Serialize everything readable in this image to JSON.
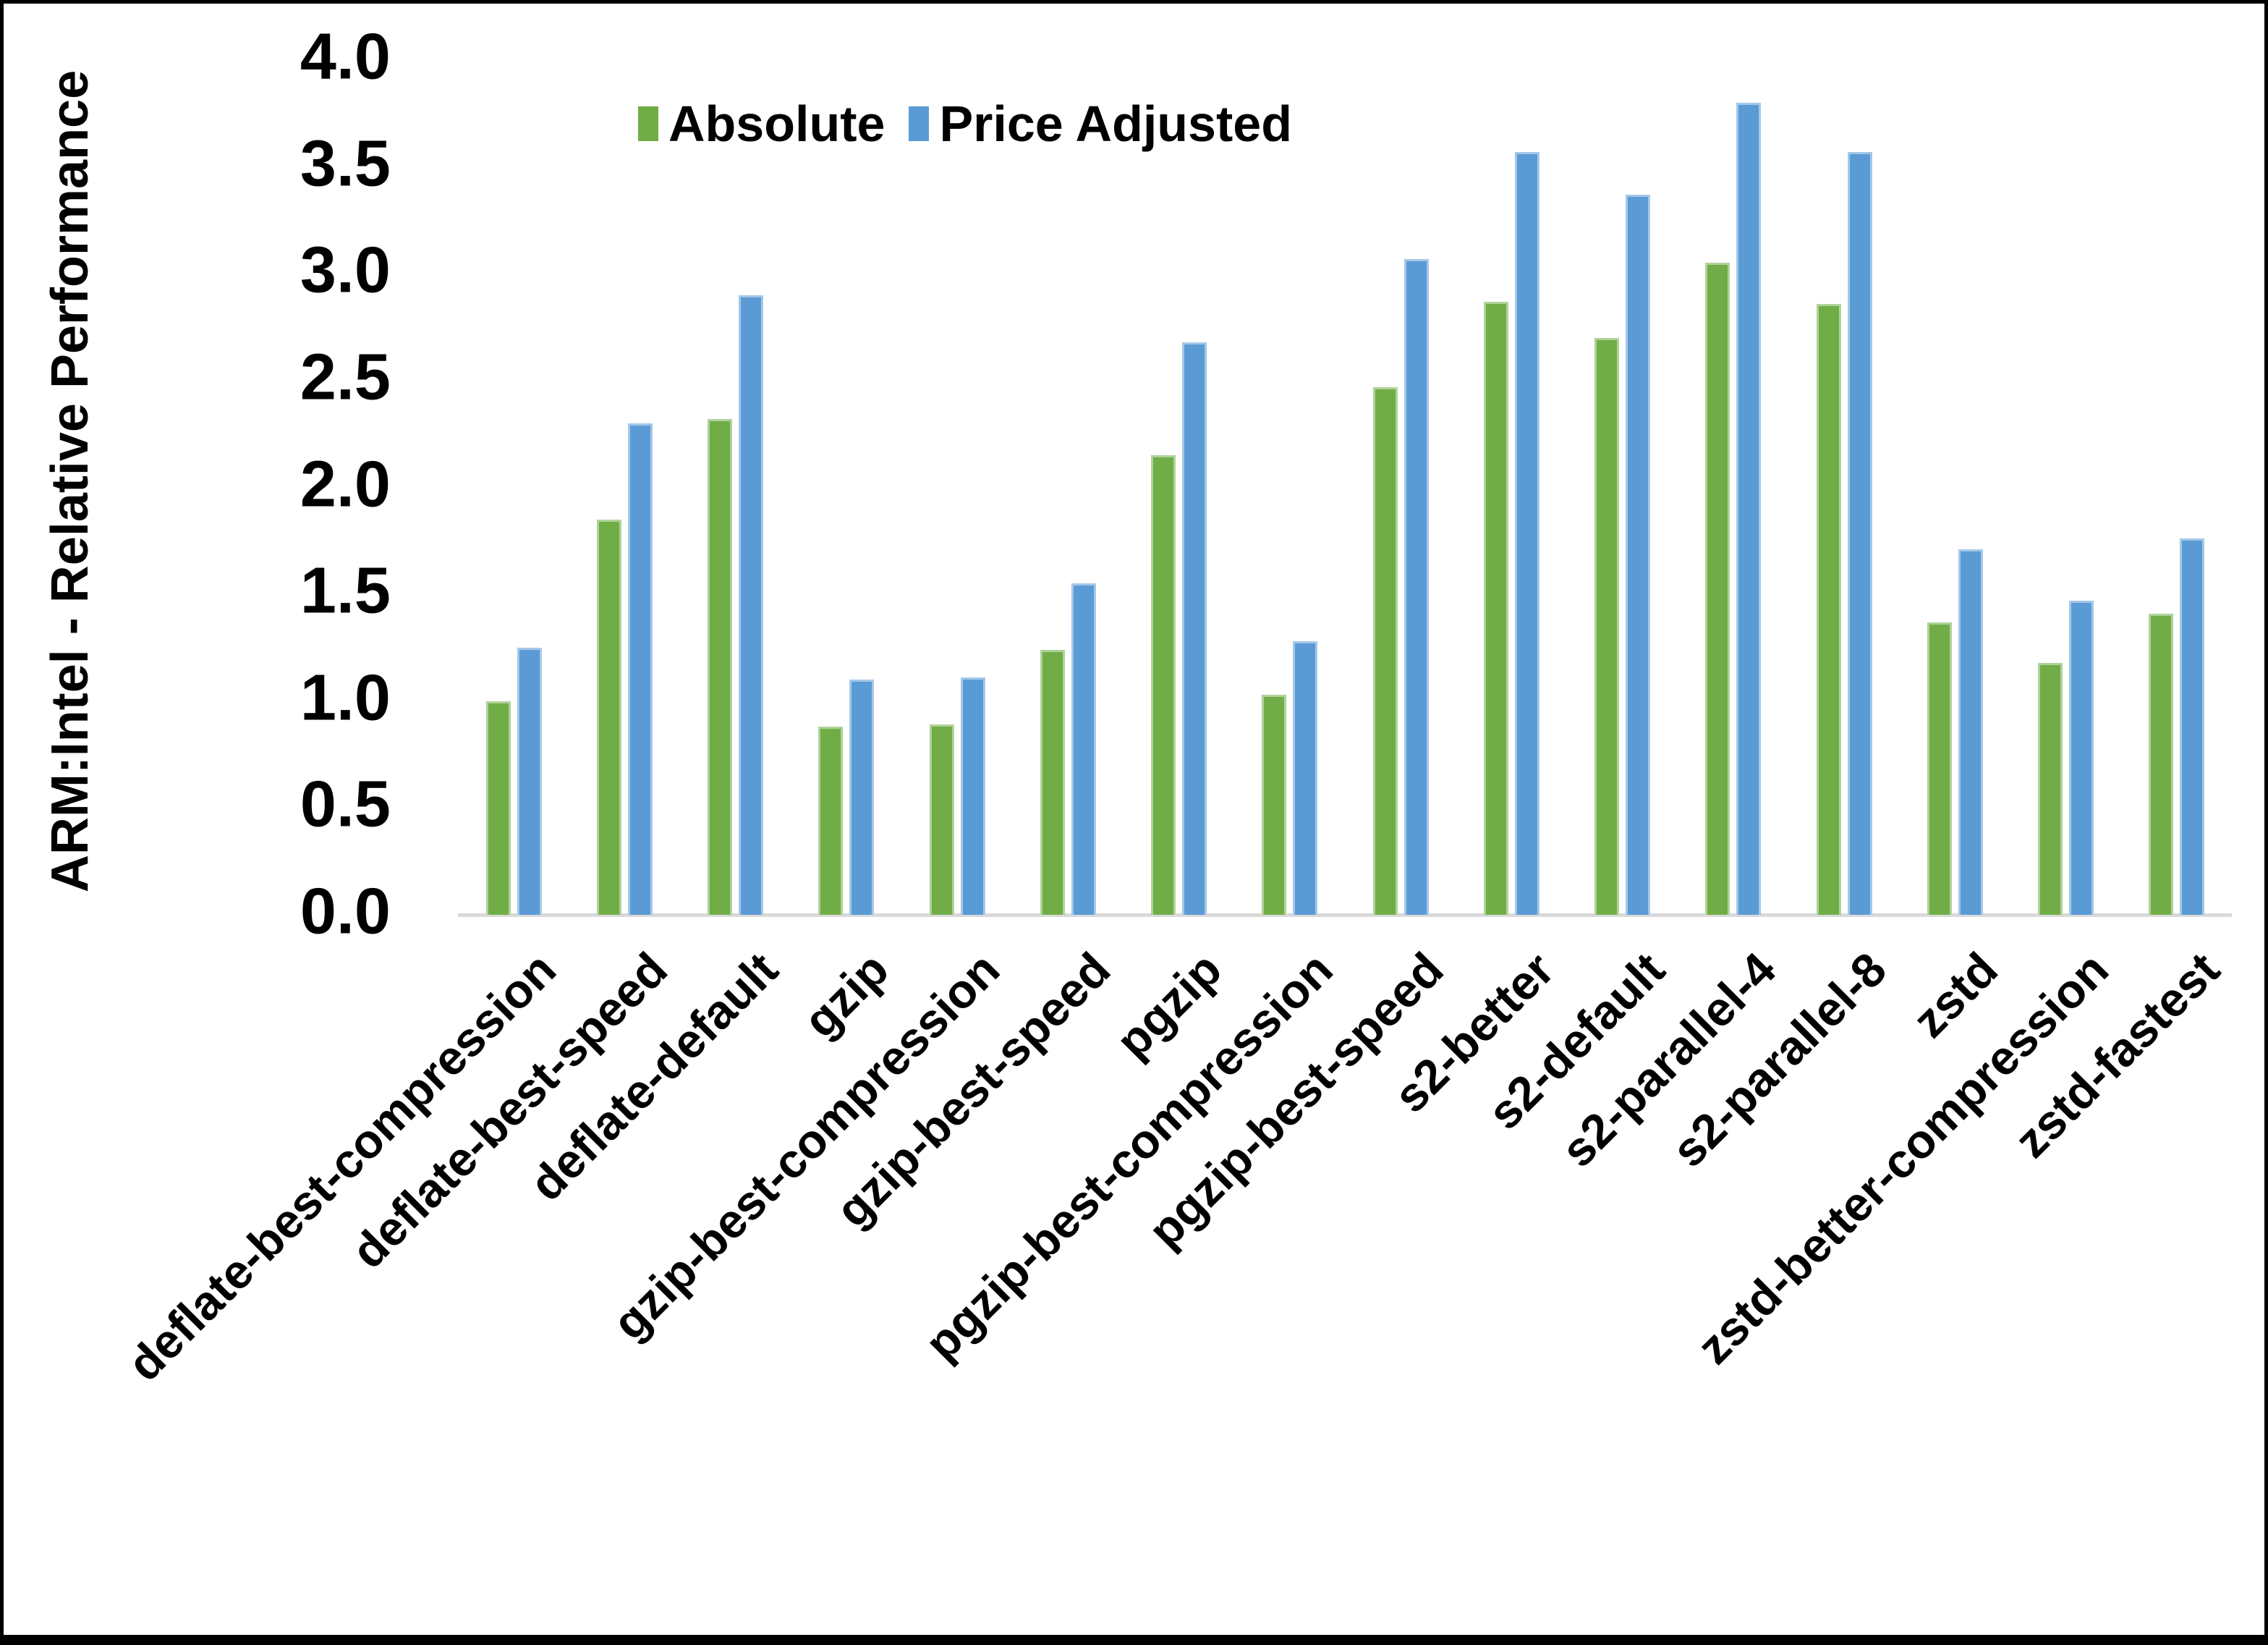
{
  "chart_data": {
    "type": "bar",
    "title": "",
    "xlabel": "",
    "ylabel": "ARM:Intel - Relative Performance",
    "ylim": [
      0.0,
      4.0
    ],
    "ytick_step": 0.5,
    "yticks": [
      "0.0",
      "0.5",
      "1.0",
      "1.5",
      "2.0",
      "2.5",
      "3.0",
      "3.5",
      "4.0"
    ],
    "grid": false,
    "legend_position": "top-center",
    "axis_line_color": "#D9D9D9",
    "categories": [
      "deflate-best-compression",
      "deflate-best-speed",
      "deflate-default",
      "gzip",
      "gzip-best-compression",
      "gzip-best-speed",
      "pgzip",
      "pgzip-best-compression",
      "pgzip-best-speed",
      "s2-better",
      "s2-default",
      "s2-parallel-4",
      "s2-parallel-8",
      "zstd",
      "zstd-better-compression",
      "zstd-fastest"
    ],
    "series": [
      {
        "name": "Absolute",
        "color": "#70AD47",
        "values": [
          1.0,
          1.85,
          2.32,
          0.88,
          0.89,
          1.24,
          2.15,
          1.03,
          2.47,
          2.87,
          2.7,
          3.05,
          2.86,
          1.37,
          1.18,
          1.41
        ]
      },
      {
        "name": "Price Adjusted",
        "color": "#5B9BD5",
        "values": [
          1.25,
          2.3,
          2.9,
          1.1,
          1.11,
          1.55,
          2.68,
          1.28,
          3.07,
          3.57,
          3.37,
          3.8,
          3.57,
          1.71,
          1.47,
          1.76
        ]
      }
    ]
  }
}
